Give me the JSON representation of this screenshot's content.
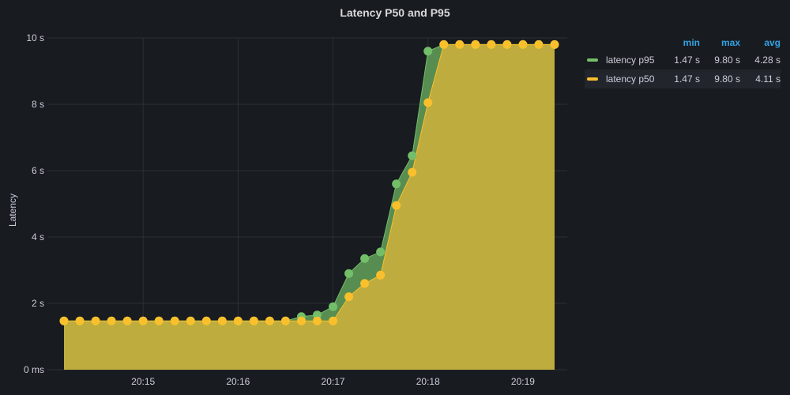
{
  "chart_data": {
    "type": "area",
    "title": "Latency P50 and P95",
    "ylabel": "Latency",
    "xlabel": "",
    "y_unit": "s",
    "ylim": [
      0,
      10
    ],
    "yticks": [
      {
        "value": 0,
        "label": "0 ms"
      },
      {
        "value": 2,
        "label": "2 s"
      },
      {
        "value": 4,
        "label": "4 s"
      },
      {
        "value": 6,
        "label": "6 s"
      },
      {
        "value": 8,
        "label": "8 s"
      },
      {
        "value": 10,
        "label": "10 s"
      }
    ],
    "xlim": [
      "20:14:10",
      "20:19:20"
    ],
    "xticks": [
      "20:15",
      "20:16",
      "20:17",
      "20:18",
      "20:19"
    ],
    "x": [
      "20:14:10",
      "20:14:20",
      "20:14:30",
      "20:14:40",
      "20:14:50",
      "20:15:00",
      "20:15:10",
      "20:15:20",
      "20:15:30",
      "20:15:40",
      "20:15:50",
      "20:16:00",
      "20:16:10",
      "20:16:20",
      "20:16:30",
      "20:16:40",
      "20:16:50",
      "20:17:00",
      "20:17:10",
      "20:17:20",
      "20:17:30",
      "20:17:40",
      "20:17:50",
      "20:18:00",
      "20:18:10",
      "20:18:20",
      "20:18:30",
      "20:18:40",
      "20:18:50",
      "20:19:00",
      "20:19:10",
      "20:19:20"
    ],
    "series": [
      {
        "name": "latency p95",
        "color": "#73bf69",
        "values": [
          1.47,
          1.47,
          1.47,
          1.47,
          1.47,
          1.47,
          1.47,
          1.47,
          1.47,
          1.47,
          1.47,
          1.47,
          1.47,
          1.47,
          1.47,
          1.6,
          1.65,
          1.9,
          2.9,
          3.35,
          3.55,
          5.6,
          6.45,
          9.6,
          9.8,
          9.8,
          9.8,
          9.8,
          9.8,
          9.8,
          9.8,
          9.8
        ],
        "min": "1.47 s",
        "max": "9.80 s",
        "avg": "4.28 s"
      },
      {
        "name": "latency p50",
        "color": "#fac02c",
        "values": [
          1.47,
          1.47,
          1.47,
          1.47,
          1.47,
          1.47,
          1.47,
          1.47,
          1.47,
          1.47,
          1.47,
          1.47,
          1.47,
          1.47,
          1.47,
          1.47,
          1.47,
          1.47,
          2.2,
          2.6,
          2.85,
          4.95,
          5.95,
          8.05,
          9.8,
          9.8,
          9.8,
          9.8,
          9.8,
          9.8,
          9.8,
          9.8
        ],
        "min": "1.47 s",
        "max": "9.80 s",
        "avg": "4.11 s"
      }
    ],
    "grid": true,
    "legend_placement": "right",
    "legend_headers": {
      "min": "min",
      "max": "max",
      "avg": "avg"
    }
  }
}
